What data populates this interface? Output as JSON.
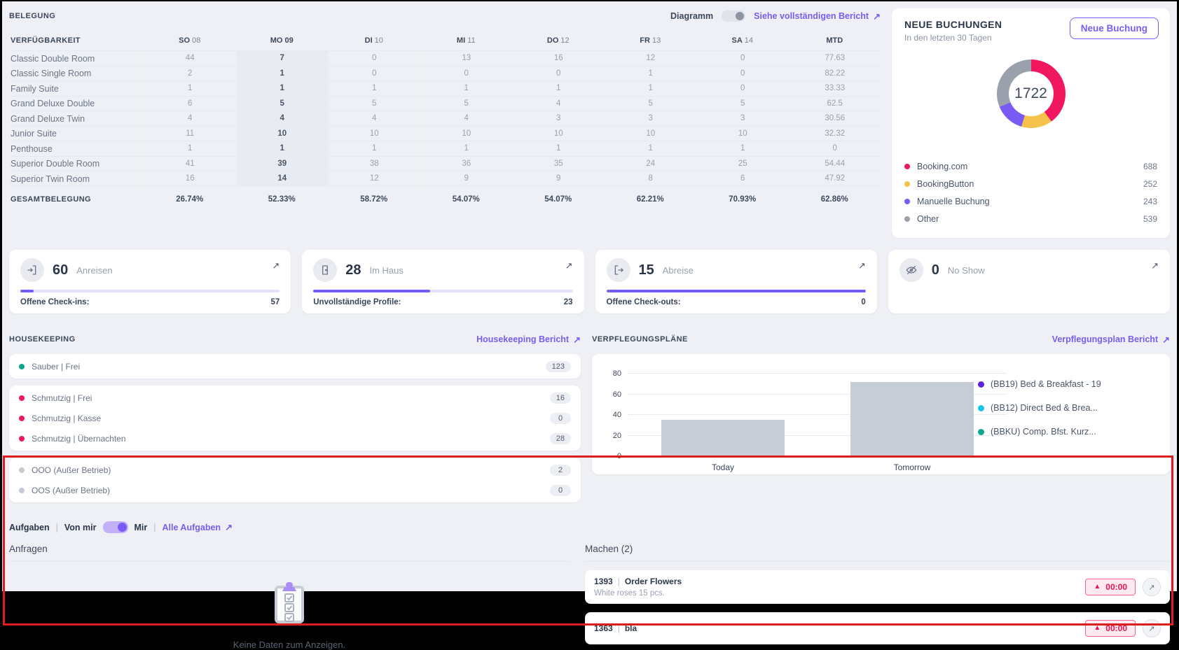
{
  "belegung": {
    "title": "BELEGUNG",
    "diagramm_label": "Diagramm",
    "report_link": "Siehe vollständigen Bericht",
    "table": {
      "first_header": "VERFÜGBARKEIT",
      "headers": [
        "SO 08",
        "MO 09",
        "DI 10",
        "MI 11",
        "DO 12",
        "FR 13",
        "SA 14",
        "MTD"
      ],
      "highlighted_column": 1,
      "rows": [
        {
          "name": "Classic Double Room",
          "values": [
            "44",
            "7",
            "0",
            "13",
            "16",
            "12",
            "0",
            "77.63"
          ]
        },
        {
          "name": "Classic Single Room",
          "values": [
            "2",
            "1",
            "0",
            "0",
            "0",
            "1",
            "0",
            "82.22"
          ]
        },
        {
          "name": "Family Suite",
          "values": [
            "1",
            "1",
            "1",
            "1",
            "1",
            "1",
            "0",
            "33.33"
          ]
        },
        {
          "name": "Grand Deluxe Double",
          "values": [
            "6",
            "5",
            "5",
            "5",
            "4",
            "5",
            "5",
            "62.5"
          ]
        },
        {
          "name": "Grand Deluxe Twin",
          "values": [
            "4",
            "4",
            "4",
            "4",
            "3",
            "3",
            "3",
            "30.56"
          ]
        },
        {
          "name": "Junior Suite",
          "values": [
            "11",
            "10",
            "10",
            "10",
            "10",
            "10",
            "10",
            "32.32"
          ]
        },
        {
          "name": "Penthouse",
          "values": [
            "1",
            "1",
            "1",
            "1",
            "1",
            "1",
            "1",
            "0"
          ]
        },
        {
          "name": "Superior Double Room",
          "values": [
            "41",
            "39",
            "38",
            "36",
            "35",
            "24",
            "25",
            "54.44"
          ]
        },
        {
          "name": "Superior Twin Room",
          "values": [
            "16",
            "14",
            "12",
            "9",
            "9",
            "8",
            "6",
            "47.92"
          ]
        }
      ],
      "total": {
        "name": "GESAMTBELEGUNG",
        "values": [
          "26.74%",
          "52.33%",
          "58.72%",
          "54.07%",
          "54.07%",
          "62.21%",
          "70.93%",
          "62.86%"
        ]
      }
    }
  },
  "neue_buchungen": {
    "title": "NEUE BUCHUNGEN",
    "subtitle": "In den letzten 30 Tagen",
    "button": "Neue Buchung",
    "total": "1722",
    "legend": [
      {
        "label": "Booking.com",
        "value": "688",
        "color": "#f0175e"
      },
      {
        "label": "BookingButton",
        "value": "252",
        "color": "#f5c24b"
      },
      {
        "label": "Manuelle Buchung",
        "value": "243",
        "color": "#7a5af5"
      },
      {
        "label": "Other",
        "value": "539",
        "color": "#9aa1ac"
      }
    ]
  },
  "stat_cards": [
    {
      "value": "60",
      "label": "Anreisen",
      "icon": "door-enter-icon",
      "footer_label": "Offene Check-ins:",
      "footer_value": "57",
      "progress_pct": 5
    },
    {
      "value": "28",
      "label": "Im Haus",
      "icon": "door-icon",
      "footer_label": "Unvollständige Profile:",
      "footer_value": "23",
      "progress_pct": 45
    },
    {
      "value": "15",
      "label": "Abreise",
      "icon": "door-exit-icon",
      "footer_label": "Offene Check-outs:",
      "footer_value": "0",
      "progress_pct": 100
    },
    {
      "value": "0",
      "label": "No Show",
      "icon": "eye-off-icon"
    }
  ],
  "housekeeping": {
    "title": "HOUSEKEEPING",
    "report_link": "Housekeeping Bericht",
    "groups": [
      {
        "items": [
          {
            "label": "Sauber | Frei",
            "value": "123",
            "color": "#0ca789"
          }
        ]
      },
      {
        "items": [
          {
            "label": "Schmutzig | Frei",
            "value": "16",
            "color": "#f0175e"
          },
          {
            "label": "Schmutzig | Kasse",
            "value": "0",
            "color": "#f0175e"
          },
          {
            "label": "Schmutzig | Übernachten",
            "value": "28",
            "color": "#f0175e"
          }
        ]
      },
      {
        "items": [
          {
            "label": "OOO (Außer Betrieb)",
            "value": "2",
            "color": "#c5cbd4"
          },
          {
            "label": "OOS (Außer Betrieb)",
            "value": "0",
            "color": "#c5cbd4"
          }
        ]
      }
    ]
  },
  "verpflegung": {
    "title": "VERPFLEGUNGSPLÄNE",
    "report_link": "Verpflegungsplan Bericht",
    "legend": [
      {
        "label": "(BB19) Bed & Breakfast - 19",
        "color": "#5a22e0"
      },
      {
        "label": "(BB12) Direct Bed & Brea...",
        "color": "#18c4e8"
      },
      {
        "label": "(BBKU) Comp. Bfst. Kurz...",
        "color": "#0fa58f"
      }
    ]
  },
  "aufgaben": {
    "title": "Aufgaben",
    "sep": "|",
    "von_mir": "Von mir",
    "mir": "Mir",
    "alle": "Alle Aufgaben",
    "anfragen_title": "Anfragen",
    "empty_text": "Keine Daten zum Anzeigen.",
    "machen_title": "Machen (2)",
    "tasks": [
      {
        "id": "1393",
        "title": "Order Flowers",
        "subtitle": "White roses 15 pcs.",
        "time": "00:00"
      },
      {
        "id": "1363",
        "title": "bla",
        "subtitle": "",
        "time": "00:00"
      }
    ]
  },
  "chart_data": [
    {
      "type": "pie",
      "title": "NEUE BUCHUNGEN",
      "labels": [
        "Booking.com",
        "BookingButton",
        "Manuelle Buchung",
        "Other"
      ],
      "values": [
        688,
        252,
        243,
        539
      ],
      "total": 1722,
      "center_label": "1722",
      "colors": [
        "#f0175e",
        "#f5c24b",
        "#7a5af5",
        "#9aa1ac"
      ],
      "legend_position": "bottom"
    },
    {
      "type": "bar",
      "title": "VERPFLEGUNGSPLÄNE",
      "categories": [
        "Today",
        "Tomorrow"
      ],
      "values": [
        35,
        72
      ],
      "ylim": [
        0,
        80
      ],
      "yticks": [
        0,
        20,
        40,
        60,
        80
      ],
      "bar_color": "#c6cdd7",
      "grid": "dotted",
      "legend": [
        "(BB19) Bed & Breakfast - 19",
        "(BB12) Direct Bed & Brea...",
        "(BBKU) Comp. Bfst. Kurz..."
      ],
      "legend_position": "right"
    }
  ]
}
